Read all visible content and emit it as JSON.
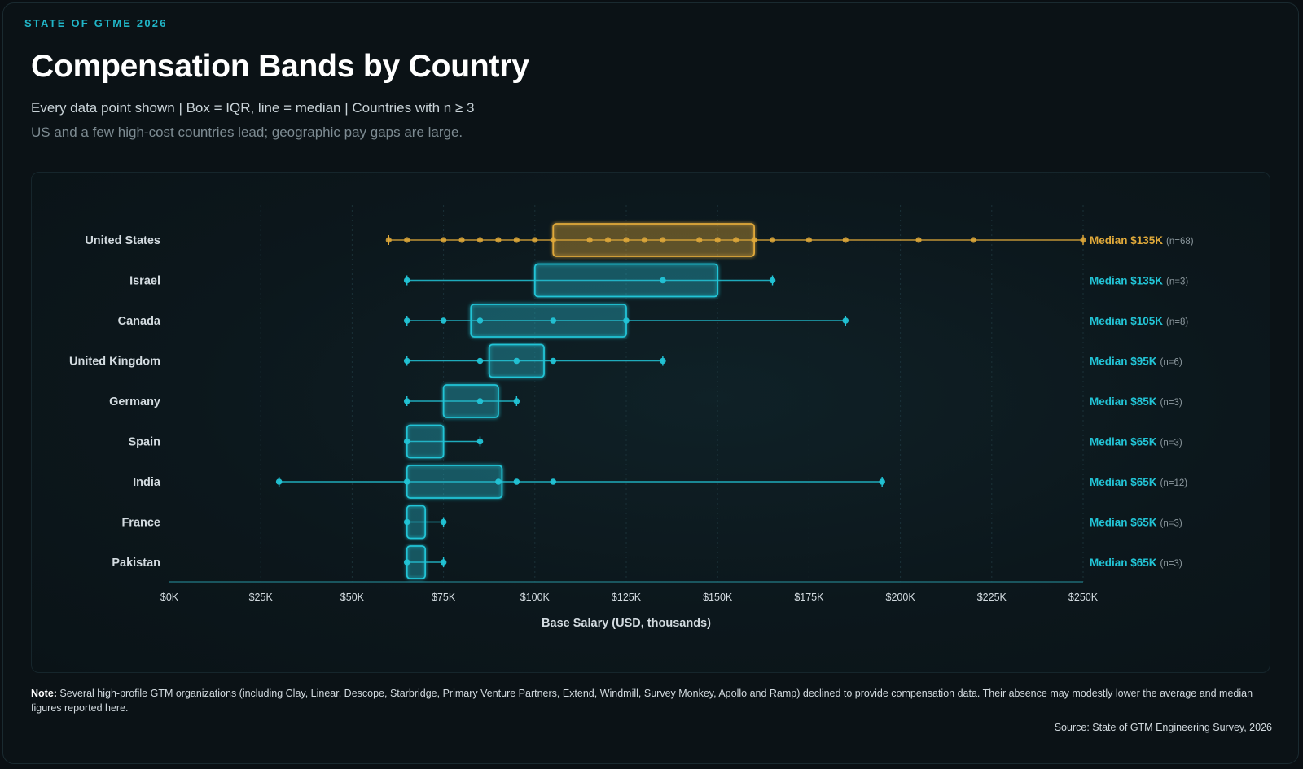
{
  "header": {
    "kicker": "STATE OF GTME 2026",
    "title": "Compensation Bands by Country",
    "subtitle": "Every data point shown | Box = IQR, line = median | Countries with n ≥ 3",
    "takeaway": "US and a few high-cost countries lead; geographic pay gaps are large."
  },
  "footer": {
    "note_label": "Note:",
    "note_text": " Several high-profile GTM organizations (including Clay, Linear, Descope, Starbridge, Primary Venture Partners, Extend, Windmill, Survey Monkey, Apollo and Ramp) declined to provide compensation data. Their absence may modestly lower the average and median figures reported here.",
    "source": "Source: State of GTM Engineering Survey, 2026"
  },
  "colors": {
    "highlight": "#e0a93a",
    "accent": "#22c4d6",
    "axis": "#1e6a75",
    "grid": "#1a3138",
    "label": "#d3dbe0",
    "muted": "#8c989e"
  },
  "chart_data": {
    "type": "box",
    "xlabel": "Base Salary (USD, thousands)",
    "xlim": [
      0,
      250
    ],
    "xticks": [
      0,
      25,
      50,
      75,
      100,
      125,
      150,
      175,
      200,
      225,
      250
    ],
    "xtick_labels": [
      "$0K",
      "$25K",
      "$50K",
      "$75K",
      "$100K",
      "$125K",
      "$150K",
      "$175K",
      "$200K",
      "$225K",
      "$250K"
    ],
    "series": [
      {
        "name": "United States",
        "n": 68,
        "highlight": true,
        "min": 60,
        "q1": 105,
        "median": 135,
        "q3": 160,
        "max": 250,
        "points": [
          60,
          65,
          75,
          80,
          85,
          90,
          95,
          100,
          105,
          115,
          120,
          125,
          130,
          135,
          145,
          150,
          155,
          160,
          165,
          175,
          185,
          205,
          220,
          250
        ],
        "median_label": "Median $135K",
        "n_label": "(n=68)"
      },
      {
        "name": "Israel",
        "n": 3,
        "min": 65,
        "q1": 100,
        "median": 135,
        "q3": 150,
        "max": 165,
        "points": [
          65,
          135,
          165
        ],
        "median_label": "Median $135K",
        "n_label": "(n=3)"
      },
      {
        "name": "Canada",
        "n": 8,
        "min": 65,
        "q1": 82.5,
        "median": 105,
        "q3": 125,
        "max": 185,
        "points": [
          65,
          75,
          85,
          105,
          125,
          185
        ],
        "median_label": "Median $105K",
        "n_label": "(n=8)"
      },
      {
        "name": "United Kingdom",
        "n": 6,
        "min": 65,
        "q1": 87.5,
        "median": 95,
        "q3": 102.5,
        "max": 135,
        "points": [
          65,
          85,
          95,
          105,
          135
        ],
        "median_label": "Median $95K",
        "n_label": "(n=6)"
      },
      {
        "name": "Germany",
        "n": 3,
        "min": 65,
        "q1": 75,
        "median": 85,
        "q3": 90,
        "max": 95,
        "points": [
          65,
          85,
          95
        ],
        "median_label": "Median $85K",
        "n_label": "(n=3)"
      },
      {
        "name": "Spain",
        "n": 3,
        "min": 65,
        "q1": 65,
        "median": 65,
        "q3": 75,
        "max": 85,
        "points": [
          65,
          85
        ],
        "median_label": "Median $65K",
        "n_label": "(n=3)"
      },
      {
        "name": "India",
        "n": 12,
        "min": 30,
        "q1": 65,
        "median": 65,
        "q3": 91,
        "max": 195,
        "points": [
          30,
          65,
          90,
          95,
          105,
          195
        ],
        "median_label": "Median $65K",
        "n_label": "(n=12)"
      },
      {
        "name": "France",
        "n": 3,
        "min": 65,
        "q1": 65,
        "median": 65,
        "q3": 70,
        "max": 75,
        "points": [
          65,
          75
        ],
        "median_label": "Median $65K",
        "n_label": "(n=3)"
      },
      {
        "name": "Pakistan",
        "n": 3,
        "min": 65,
        "q1": 65,
        "median": 65,
        "q3": 70,
        "max": 75,
        "points": [
          65,
          75
        ],
        "median_label": "Median $65K",
        "n_label": "(n=3)"
      }
    ]
  }
}
